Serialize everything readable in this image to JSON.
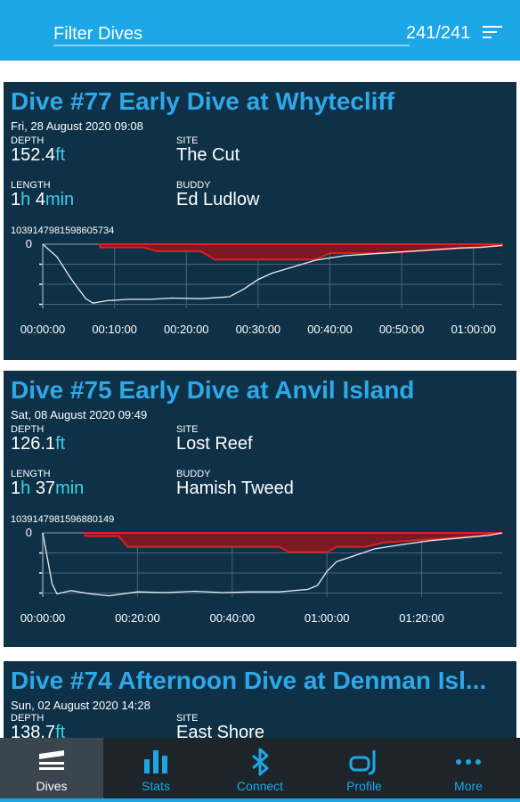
{
  "header": {
    "filter_label": "Filter Dives",
    "count": "241/241"
  },
  "dives": [
    {
      "title": "Dive #77 Early Dive at Whytecliff",
      "date": "Fri, 28 August 2020 09:08",
      "depth_label": "DEPTH",
      "depth_value": "152.4",
      "depth_unit": "ft",
      "site_label": "SITE",
      "site": "The Cut",
      "length_label": "LENGTH",
      "length_h": "1",
      "length_h_unit": "h",
      "length_m": "4",
      "length_m_unit": "min",
      "buddy_label": "BUDDY",
      "buddy": "Ed Ludlow",
      "dive_id": "1039147981598605734",
      "chart": {
        "y_zero_label": "0",
        "x_ticks": [
          "00:00:00",
          "00:10:00",
          "00:20:00",
          "00:30:00",
          "00:40:00",
          "00:50:00",
          "01:00:00"
        ],
        "duration_min": 64,
        "max_depth_ft": 152.4
      }
    },
    {
      "title": "Dive #75 Early Dive at Anvil Island",
      "date": "Sat, 08 August 2020 09:49",
      "depth_label": "DEPTH",
      "depth_value": "126.1",
      "depth_unit": "ft",
      "site_label": "SITE",
      "site": "Lost Reef",
      "length_label": "LENGTH",
      "length_h": "1",
      "length_h_unit": "h",
      "length_m": "37",
      "length_m_unit": "min",
      "buddy_label": "BUDDY",
      "buddy": "Hamish Tweed",
      "dive_id": "1039147981596880149",
      "chart": {
        "y_zero_label": "0",
        "x_ticks": [
          "00:00:00",
          "00:20:00",
          "00:40:00",
          "01:00:00",
          "01:20:00"
        ],
        "duration_min": 97,
        "max_depth_ft": 126.1
      }
    },
    {
      "title": "Dive #74 Afternoon Dive at Denman Isl...",
      "date": "Sun, 02 August 2020 14:28",
      "depth_label": "DEPTH",
      "depth_value": "138.7",
      "depth_unit": "ft",
      "site_label": "SITE",
      "site": "East Shore"
    }
  ],
  "nav": [
    {
      "label": "Dives",
      "icon": "dives-icon",
      "active": true
    },
    {
      "label": "Stats",
      "icon": "stats-icon",
      "active": false
    },
    {
      "label": "Connect",
      "icon": "bluetooth-icon",
      "active": false
    },
    {
      "label": "Profile",
      "icon": "snorkel-mask-icon",
      "active": false
    },
    {
      "label": "More",
      "icon": "more-dots-icon",
      "active": false
    }
  ],
  "colors": {
    "accent": "#1da7e6",
    "card_bg": "#0e3147",
    "title": "#2fa8e8",
    "unit": "#39d2e6",
    "deco": "#e02020",
    "nav_bg": "#1d252b"
  }
}
